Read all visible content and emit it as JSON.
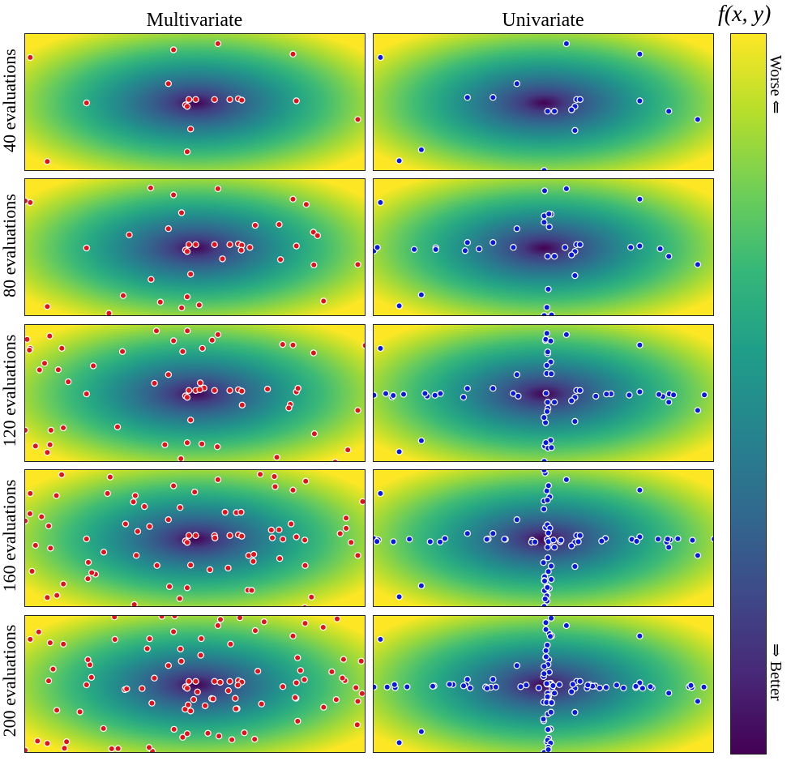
{
  "chart_data": {
    "type": "scatter",
    "description_function": "f(x, y) elliptical bowl contour background, viridis colormap",
    "columns": [
      "Multivariate",
      "Univariate"
    ],
    "rows": [
      "40 evaluations",
      "80 evaluations",
      "120 evaluations",
      "160 evaluations",
      "200 evaluations"
    ],
    "colorbar": {
      "title": "f(x, y)",
      "top_label": "Worse ⇐",
      "bottom_label": "⇒ Better"
    },
    "xlim": [
      -1,
      1
    ],
    "ylim": [
      -1,
      1
    ],
    "minimum": [
      0,
      0
    ],
    "series_colors": {
      "Multivariate": "#e0121b",
      "Univariate": "#0a1ad8"
    },
    "multivariate_points": [
      [
        -0.97,
        0.66
      ],
      [
        -0.13,
        0.77
      ],
      [
        0.13,
        0.86
      ],
      [
        0.57,
        0.71
      ],
      [
        -0.16,
        0.28
      ],
      [
        -0.64,
        0
      ],
      [
        0.59,
        0.03
      ],
      [
        0.95,
        -0.24
      ],
      [
        -0.03,
        -0.38
      ],
      [
        -0.87,
        -0.85
      ],
      [
        -0.05,
        -0.71
      ],
      [
        -0.06,
        -0.03
      ],
      [
        -0.04,
        0.05
      ],
      [
        0,
        0.05
      ],
      [
        0.11,
        0.05
      ],
      [
        0.2,
        0.05
      ],
      [
        0.25,
        0.06
      ],
      [
        0.27,
        0.04
      ],
      [
        -0.05,
        -0.05
      ]
    ],
    "univariate_points": [
      [
        -0.96,
        0.66
      ],
      [
        0.13,
        0.86
      ],
      [
        0.56,
        0.71
      ],
      [
        -0.16,
        0.28
      ],
      [
        -0.45,
        0.08
      ],
      [
        -0.3,
        0.08
      ],
      [
        0.56,
        0.03
      ],
      [
        0.73,
        -0.12
      ],
      [
        0.9,
        -0.24
      ],
      [
        0.18,
        -0.4
      ],
      [
        -0.72,
        -0.68
      ],
      [
        -0.85,
        -0.84
      ],
      [
        0,
        -0.98
      ],
      [
        0.02,
        -0.12
      ],
      [
        0.06,
        -0.12
      ],
      [
        0.19,
        0.05
      ],
      [
        0.21,
        0.05
      ],
      [
        0.18,
        -0.05
      ],
      [
        0.16,
        -0.1
      ]
    ]
  }
}
